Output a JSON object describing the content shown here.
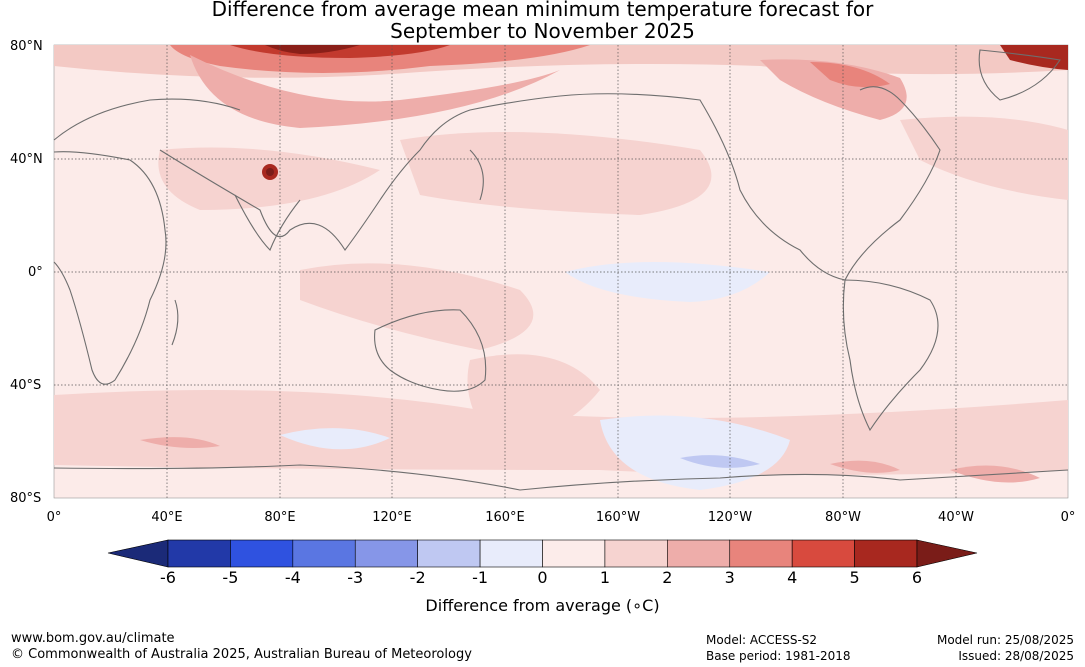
{
  "title": {
    "line1": "Difference from average mean minimum temperature forecast for",
    "line2": "September to November 2025"
  },
  "map": {
    "lat_labels": [
      "80°N",
      "40°N",
      "0°",
      "40°S",
      "80°S"
    ],
    "lon_labels": [
      "0°",
      "40°E",
      "80°E",
      "120°E",
      "160°E",
      "160°W",
      "120°W",
      "80°W",
      "40°W",
      "0°"
    ],
    "coastline_color": "#6e6e6e",
    "gridline_color": "#555555"
  },
  "colorbar": {
    "ticks": [
      "-6",
      "-5",
      "-4",
      "-3",
      "-2",
      "-1",
      "0",
      "1",
      "2",
      "3",
      "4",
      "5",
      "6"
    ],
    "label": "Difference from average (∘C)",
    "low_extend_color": "#1b2a78",
    "high_extend_color": "#7a1c18",
    "colors": [
      "#2239a8",
      "#2f52e0",
      "#5a76e2",
      "#8696e8",
      "#bfc8f2",
      "#e8ecfb",
      "#fcecea",
      "#f6d3d0",
      "#eeadaa",
      "#e8847c",
      "#d84a3e",
      "#a8281f"
    ]
  },
  "footer": {
    "website": "www.bom.gov.au/climate",
    "copyright": "© Commonwealth of Australia 2025, Australian Bureau of Meteorology",
    "model": "Model: ACCESS-S2",
    "base_period": "Base period: 1981-2018",
    "model_run": "Model run: 25/08/2025",
    "issued": "Issued: 28/08/2025"
  }
}
